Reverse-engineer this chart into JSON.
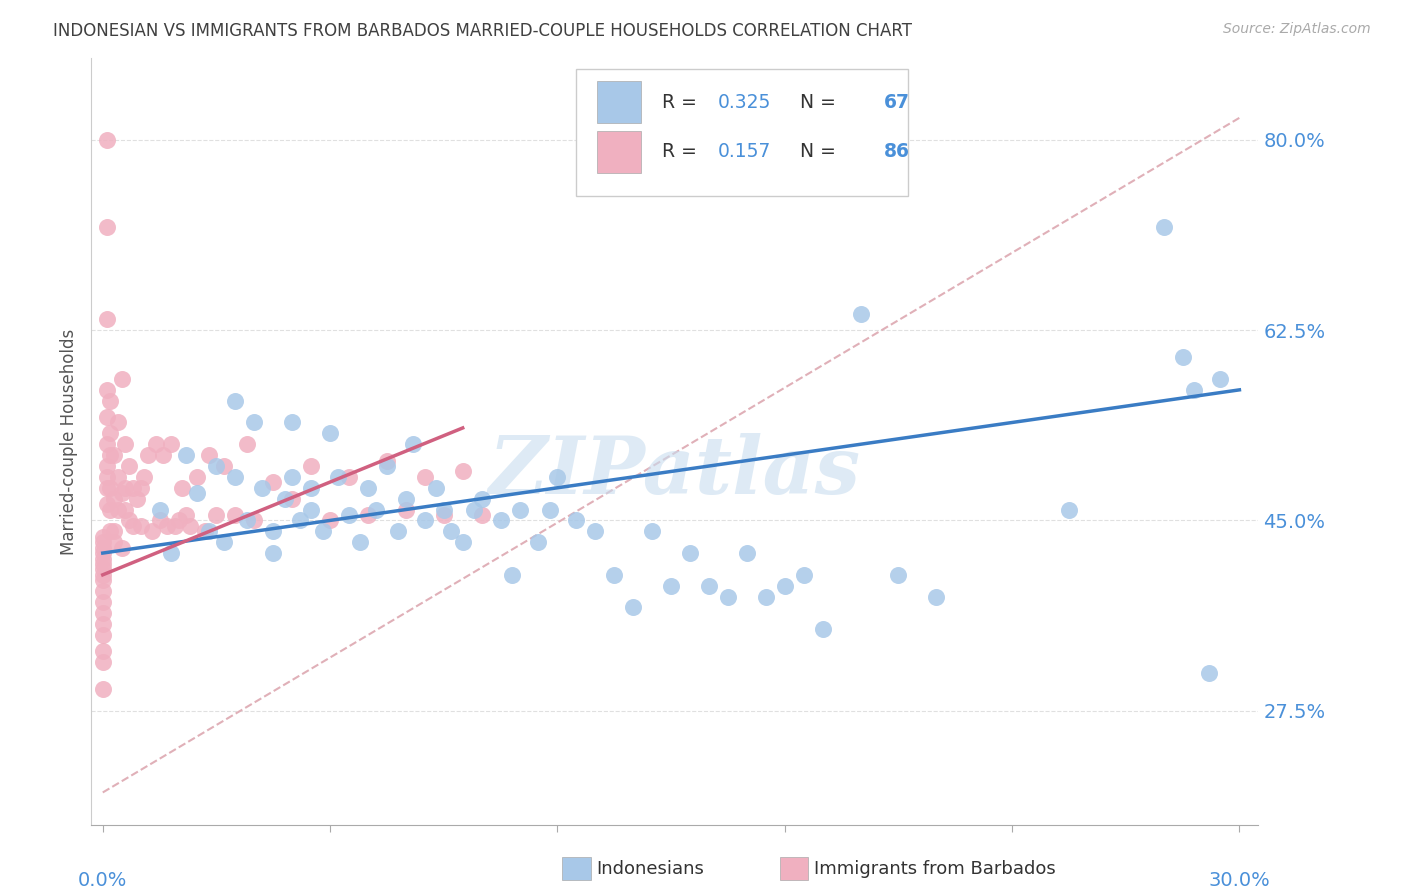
{
  "title": "INDONESIAN VS IMMIGRANTS FROM BARBADOS MARRIED-COUPLE HOUSEHOLDS CORRELATION CHART",
  "source": "Source: ZipAtlas.com",
  "ylabel": "Married-couple Households",
  "yticks": [
    0.275,
    0.45,
    0.625,
    0.8
  ],
  "ytick_labels": [
    "27.5%",
    "45.0%",
    "62.5%",
    "80.0%"
  ],
  "xlim": [
    -0.003,
    0.305
  ],
  "ylim": [
    0.17,
    0.875
  ],
  "blue_color": "#a8c8e8",
  "blue_line_color": "#3a7cc4",
  "pink_color": "#f0b0c0",
  "pink_line_color": "#d06080",
  "ref_line_color": "#e0b0b8",
  "grid_color": "#e0e0e0",
  "legend_R1": "0.325",
  "legend_N1": "67",
  "legend_R2": "0.157",
  "legend_N2": "86",
  "watermark": "ZIPatlas",
  "watermark_color": "#c8ddef",
  "tick_color": "#4a90d9",
  "title_color": "#404040",
  "source_color": "#aaaaaa",
  "blue_x": [
    0.015,
    0.018,
    0.022,
    0.025,
    0.028,
    0.03,
    0.032,
    0.035,
    0.035,
    0.038,
    0.04,
    0.042,
    0.045,
    0.045,
    0.048,
    0.05,
    0.05,
    0.052,
    0.055,
    0.055,
    0.058,
    0.06,
    0.062,
    0.065,
    0.068,
    0.07,
    0.072,
    0.075,
    0.078,
    0.08,
    0.082,
    0.085,
    0.088,
    0.09,
    0.092,
    0.095,
    0.098,
    0.1,
    0.105,
    0.108,
    0.11,
    0.115,
    0.118,
    0.12,
    0.125,
    0.13,
    0.135,
    0.14,
    0.145,
    0.15,
    0.155,
    0.16,
    0.165,
    0.17,
    0.175,
    0.18,
    0.185,
    0.19,
    0.2,
    0.21,
    0.22,
    0.255,
    0.28,
    0.285,
    0.288,
    0.292,
    0.295
  ],
  "blue_y": [
    0.46,
    0.42,
    0.51,
    0.475,
    0.44,
    0.5,
    0.43,
    0.56,
    0.49,
    0.45,
    0.54,
    0.48,
    0.44,
    0.42,
    0.47,
    0.54,
    0.49,
    0.45,
    0.48,
    0.46,
    0.44,
    0.53,
    0.49,
    0.455,
    0.43,
    0.48,
    0.46,
    0.5,
    0.44,
    0.47,
    0.52,
    0.45,
    0.48,
    0.46,
    0.44,
    0.43,
    0.46,
    0.47,
    0.45,
    0.4,
    0.46,
    0.43,
    0.46,
    0.49,
    0.45,
    0.44,
    0.4,
    0.37,
    0.44,
    0.39,
    0.42,
    0.39,
    0.38,
    0.42,
    0.38,
    0.39,
    0.4,
    0.35,
    0.64,
    0.4,
    0.38,
    0.46,
    0.72,
    0.6,
    0.57,
    0.31,
    0.58
  ],
  "pink_x": [
    0.0,
    0.0,
    0.0,
    0.0,
    0.0,
    0.0,
    0.0,
    0.0,
    0.0,
    0.0,
    0.0,
    0.0,
    0.0,
    0.0,
    0.0,
    0.0,
    0.0,
    0.001,
    0.001,
    0.001,
    0.001,
    0.001,
    0.001,
    0.001,
    0.001,
    0.001,
    0.001,
    0.002,
    0.002,
    0.002,
    0.002,
    0.002,
    0.002,
    0.003,
    0.003,
    0.003,
    0.003,
    0.004,
    0.004,
    0.004,
    0.005,
    0.005,
    0.005,
    0.006,
    0.006,
    0.006,
    0.007,
    0.007,
    0.008,
    0.008,
    0.009,
    0.01,
    0.01,
    0.011,
    0.012,
    0.013,
    0.014,
    0.015,
    0.016,
    0.017,
    0.018,
    0.019,
    0.02,
    0.021,
    0.022,
    0.023,
    0.025,
    0.027,
    0.028,
    0.03,
    0.032,
    0.035,
    0.038,
    0.04,
    0.045,
    0.05,
    0.055,
    0.06,
    0.065,
    0.07,
    0.075,
    0.08,
    0.085,
    0.09,
    0.095,
    0.1
  ],
  "pink_y": [
    0.435,
    0.43,
    0.425,
    0.42,
    0.415,
    0.41,
    0.405,
    0.4,
    0.395,
    0.385,
    0.375,
    0.365,
    0.355,
    0.345,
    0.33,
    0.32,
    0.295,
    0.8,
    0.72,
    0.635,
    0.57,
    0.545,
    0.52,
    0.5,
    0.49,
    0.48,
    0.465,
    0.56,
    0.53,
    0.51,
    0.48,
    0.46,
    0.44,
    0.51,
    0.47,
    0.44,
    0.43,
    0.54,
    0.49,
    0.46,
    0.58,
    0.475,
    0.425,
    0.52,
    0.48,
    0.46,
    0.5,
    0.45,
    0.48,
    0.445,
    0.47,
    0.48,
    0.445,
    0.49,
    0.51,
    0.44,
    0.52,
    0.45,
    0.51,
    0.445,
    0.52,
    0.445,
    0.45,
    0.48,
    0.455,
    0.445,
    0.49,
    0.44,
    0.51,
    0.455,
    0.5,
    0.455,
    0.52,
    0.45,
    0.485,
    0.47,
    0.5,
    0.45,
    0.49,
    0.455,
    0.505,
    0.46,
    0.49,
    0.455,
    0.495,
    0.455
  ]
}
